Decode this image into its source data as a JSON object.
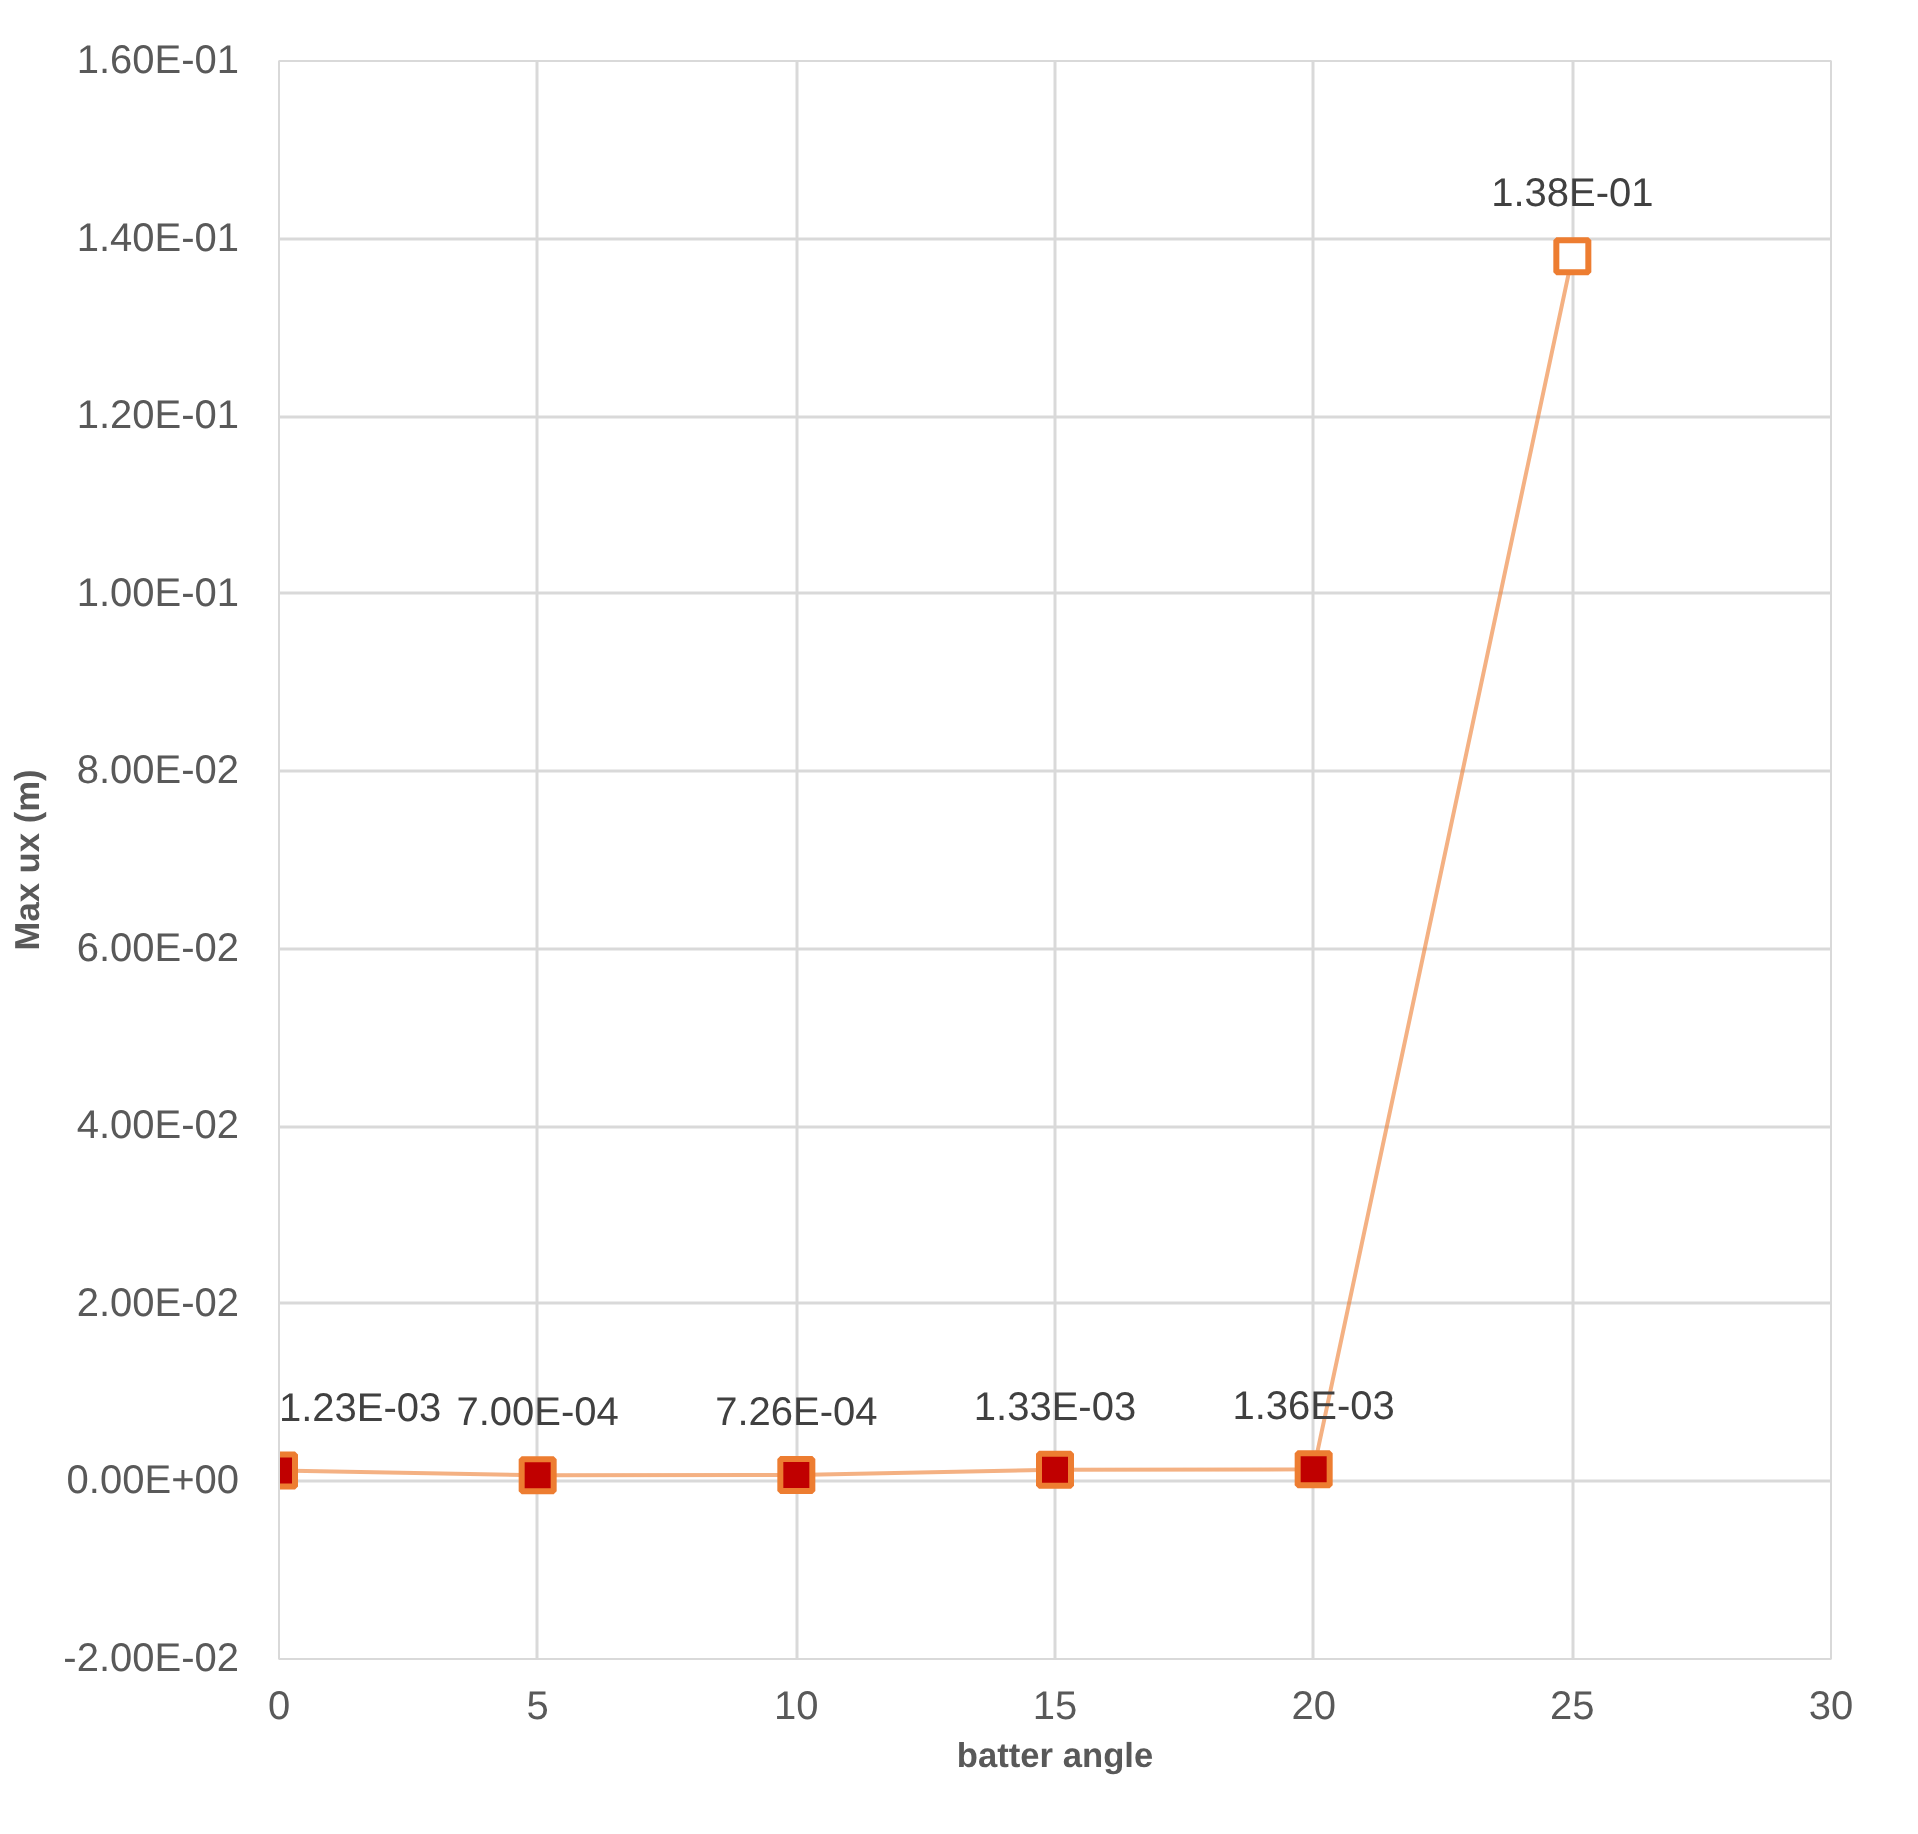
{
  "chart_data": {
    "type": "line",
    "xlabel": "batter angle",
    "ylabel": "Max ux (m)",
    "x": [
      0,
      5,
      10,
      15,
      20,
      25
    ],
    "series": [
      {
        "color": "#ed7d31",
        "colors": [
          "#c00000",
          "#c00000",
          "#c00000",
          "#c00000",
          "#c00000",
          "#ffffff"
        ],
        "values": [
          0.00123,
          0.0007,
          0.000726,
          0.00133,
          0.00136,
          0.138
        ],
        "value_labels": [
          "1.23E-03",
          "7.00E-04",
          "7.26E-04",
          "1.33E-03",
          "1.36E-03",
          "1.38E-01"
        ]
      }
    ],
    "xlim": [
      0,
      30
    ],
    "xticks": [
      0,
      5,
      10,
      15,
      20,
      25,
      30
    ],
    "ylim": [
      -0.02,
      0.16
    ],
    "yticks": [
      {
        "value": -0.02,
        "label": "-2.00E-02"
      },
      {
        "value": 0,
        "label": "0.00E+00"
      },
      {
        "value": 0.02,
        "label": "2.00E-02"
      },
      {
        "value": 0.04,
        "label": "4.00E-02"
      },
      {
        "value": 0.06,
        "label": "6.00E-02"
      },
      {
        "value": 0.08,
        "label": "8.00E-02"
      },
      {
        "value": 0.1,
        "label": "1.00E-01"
      },
      {
        "value": 0.12,
        "label": "1.20E-01"
      },
      {
        "value": 0.14,
        "label": "1.40E-01"
      },
      {
        "value": 0.16,
        "label": "1.60E-01"
      }
    ],
    "grid": true,
    "marker": "square"
  }
}
